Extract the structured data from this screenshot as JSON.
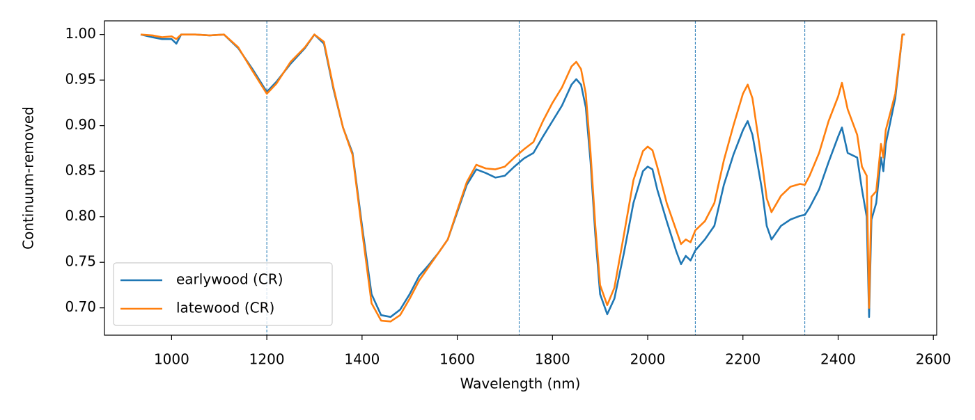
{
  "chart_data": {
    "type": "line",
    "xlabel": "Wavelength (nm)",
    "ylabel": "Continuum-removed",
    "x": [
      935,
      960,
      980,
      1000,
      1010,
      1020,
      1050,
      1080,
      1110,
      1140,
      1170,
      1200,
      1220,
      1250,
      1280,
      1300,
      1320,
      1340,
      1360,
      1380,
      1400,
      1420,
      1440,
      1460,
      1480,
      1500,
      1520,
      1540,
      1560,
      1580,
      1600,
      1620,
      1640,
      1660,
      1680,
      1700,
      1720,
      1740,
      1760,
      1780,
      1800,
      1820,
      1840,
      1850,
      1860,
      1870,
      1880,
      1890,
      1900,
      1915,
      1930,
      1950,
      1970,
      1990,
      2000,
      2010,
      2020,
      2040,
      2060,
      2070,
      2080,
      2090,
      2100,
      2120,
      2140,
      2160,
      2180,
      2200,
      2210,
      2220,
      2240,
      2250,
      2260,
      2280,
      2300,
      2320,
      2330,
      2340,
      2360,
      2380,
      2400,
      2408,
      2420,
      2440,
      2450,
      2460,
      2465,
      2470,
      2480,
      2490,
      2495,
      2500,
      2520,
      2535,
      2540
    ],
    "series": [
      {
        "name": "earlywood (CR)",
        "color": "#1f77b4",
        "values": [
          1.0,
          0.997,
          0.995,
          0.995,
          0.99,
          1.0,
          1.0,
          0.999,
          1.0,
          0.985,
          0.962,
          0.937,
          0.948,
          0.968,
          0.985,
          1.0,
          0.99,
          0.94,
          0.898,
          0.87,
          0.79,
          0.715,
          0.692,
          0.69,
          0.698,
          0.715,
          0.735,
          0.747,
          0.76,
          0.775,
          0.805,
          0.835,
          0.852,
          0.848,
          0.843,
          0.845,
          0.855,
          0.864,
          0.87,
          0.888,
          0.905,
          0.922,
          0.945,
          0.951,
          0.945,
          0.92,
          0.86,
          0.78,
          0.715,
          0.693,
          0.71,
          0.76,
          0.815,
          0.85,
          0.855,
          0.852,
          0.83,
          0.795,
          0.762,
          0.748,
          0.757,
          0.752,
          0.763,
          0.775,
          0.79,
          0.835,
          0.868,
          0.895,
          0.905,
          0.89,
          0.83,
          0.79,
          0.775,
          0.79,
          0.797,
          0.801,
          0.802,
          0.81,
          0.83,
          0.86,
          0.888,
          0.898,
          0.87,
          0.865,
          0.83,
          0.8,
          0.69,
          0.797,
          0.815,
          0.865,
          0.85,
          0.88,
          0.93,
          1.0,
          1.0
        ]
      },
      {
        "name": "latewood (CR)",
        "color": "#ff7f0e",
        "values": [
          1.0,
          0.999,
          0.997,
          0.998,
          0.995,
          1.0,
          1.0,
          0.999,
          1.0,
          0.986,
          0.96,
          0.935,
          0.946,
          0.97,
          0.986,
          1.0,
          0.992,
          0.942,
          0.898,
          0.868,
          0.785,
          0.705,
          0.686,
          0.685,
          0.692,
          0.71,
          0.73,
          0.745,
          0.76,
          0.775,
          0.807,
          0.838,
          0.857,
          0.853,
          0.852,
          0.855,
          0.865,
          0.874,
          0.882,
          0.905,
          0.925,
          0.942,
          0.965,
          0.97,
          0.962,
          0.935,
          0.87,
          0.79,
          0.725,
          0.703,
          0.722,
          0.78,
          0.84,
          0.872,
          0.877,
          0.873,
          0.855,
          0.815,
          0.785,
          0.77,
          0.775,
          0.772,
          0.785,
          0.795,
          0.815,
          0.862,
          0.9,
          0.935,
          0.945,
          0.93,
          0.86,
          0.82,
          0.805,
          0.823,
          0.833,
          0.836,
          0.835,
          0.845,
          0.87,
          0.905,
          0.932,
          0.947,
          0.918,
          0.89,
          0.855,
          0.845,
          0.7,
          0.822,
          0.828,
          0.88,
          0.865,
          0.895,
          0.935,
          1.0,
          1.0
        ]
      }
    ],
    "xlim": [
      859,
      2607
    ],
    "ylim": [
      0.67,
      1.015
    ],
    "xticks": [
      1000,
      1200,
      1400,
      1600,
      1800,
      2000,
      2200,
      2400,
      2600
    ],
    "yticks": [
      {
        "value": 0.7,
        "label": "0.70"
      },
      {
        "value": 0.75,
        "label": "0.75"
      },
      {
        "value": 0.8,
        "label": "0.80"
      },
      {
        "value": 0.85,
        "label": "0.85"
      },
      {
        "value": 0.9,
        "label": "0.90"
      },
      {
        "value": 0.95,
        "label": "0.95"
      },
      {
        "value": 1.0,
        "label": "1.00"
      }
    ],
    "vlines": [
      1200,
      1730,
      2100,
      2330
    ],
    "vline_color": "#1f77b4",
    "legend": "lower left",
    "grid": false
  }
}
